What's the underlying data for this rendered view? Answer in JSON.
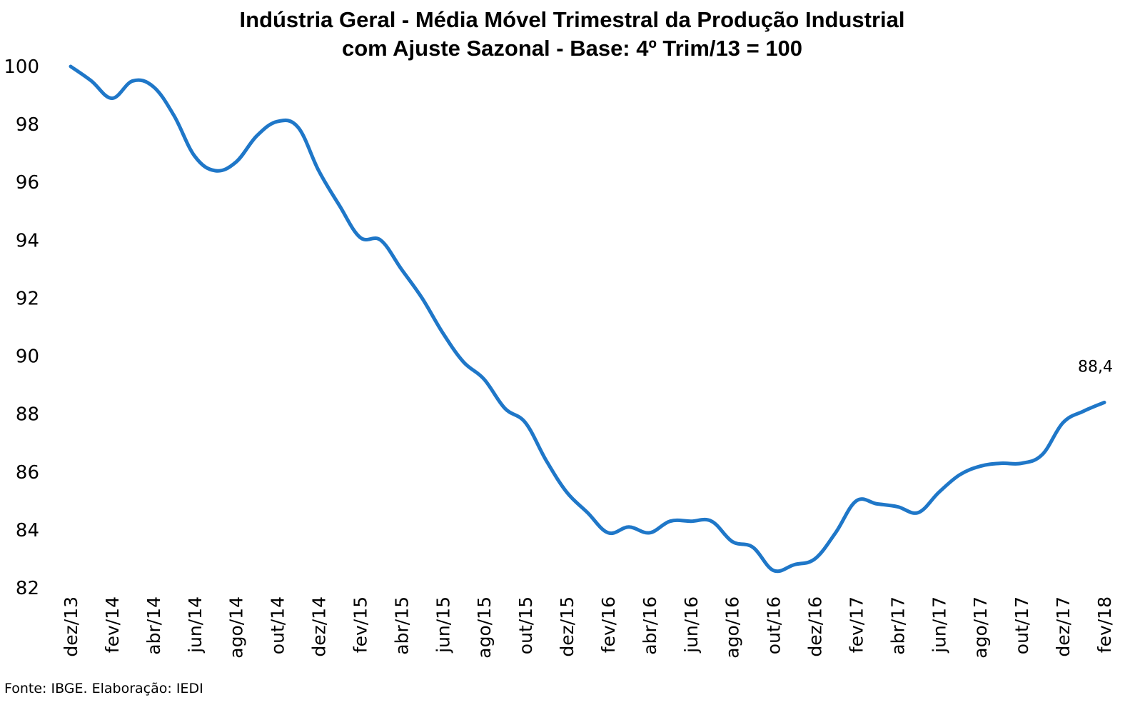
{
  "chart_data": {
    "type": "line",
    "title_line1": "Indústria Geral - Média Móvel Trimestral da Produção Industrial",
    "title_line2": "com Ajuste Sazonal - Base: 4º Trim/13 = 100",
    "xlabel": "",
    "ylabel": "",
    "ylim": [
      82,
      100
    ],
    "yticks": [
      "82",
      "84",
      "86",
      "88",
      "90",
      "92",
      "94",
      "96",
      "98",
      "100"
    ],
    "grid": false,
    "legend": "none",
    "x": [
      "dez/13",
      "jan/14",
      "fev/14",
      "mar/14",
      "abr/14",
      "mai/14",
      "jun/14",
      "jul/14",
      "ago/14",
      "set/14",
      "out/14",
      "nov/14",
      "dez/14",
      "jan/15",
      "fev/15",
      "mar/15",
      "abr/15",
      "mai/15",
      "jun/15",
      "jul/15",
      "ago/15",
      "set/15",
      "out/15",
      "nov/15",
      "dez/15",
      "jan/16",
      "fev/16",
      "mar/16",
      "abr/16",
      "mai/16",
      "jun/16",
      "jul/16",
      "ago/16",
      "set/16",
      "out/16",
      "nov/16",
      "dez/16",
      "jan/17",
      "fev/17",
      "mar/17",
      "abr/17",
      "mai/17",
      "jun/17",
      "jul/17",
      "ago/17",
      "set/17",
      "out/17",
      "nov/17",
      "dez/17",
      "jan/18",
      "fev/18"
    ],
    "xtick_labels": [
      "dez/13",
      "fev/14",
      "abr/14",
      "jun/14",
      "ago/14",
      "out/14",
      "dez/14",
      "fev/15",
      "abr/15",
      "jun/15",
      "ago/15",
      "out/15",
      "dez/15",
      "fev/16",
      "abr/16",
      "jun/16",
      "ago/16",
      "out/16",
      "dez/16",
      "fev/17",
      "abr/17",
      "jun/17",
      "ago/17",
      "out/17",
      "dez/17",
      "fev/18"
    ],
    "series": [
      {
        "color": "#1F77C8",
        "values": [
          100.0,
          99.5,
          98.9,
          99.5,
          99.3,
          98.3,
          96.9,
          96.4,
          96.7,
          97.6,
          98.1,
          97.9,
          96.4,
          95.2,
          94.1,
          94.0,
          93.0,
          92.0,
          90.8,
          89.8,
          89.2,
          88.2,
          87.7,
          86.4,
          85.3,
          84.6,
          83.9,
          84.1,
          83.9,
          84.3,
          84.3,
          84.3,
          83.6,
          83.4,
          82.6,
          82.8,
          83.0,
          83.9,
          85.0,
          84.9,
          84.8,
          84.6,
          85.3,
          85.9,
          86.2,
          86.3,
          86.3,
          86.6,
          87.7,
          88.1,
          88.4
        ]
      }
    ],
    "data_labels": [
      {
        "x": "fev/18",
        "text": "88,4"
      }
    ]
  },
  "source_note": "Fonte: IBGE. Elaboração: IEDI"
}
